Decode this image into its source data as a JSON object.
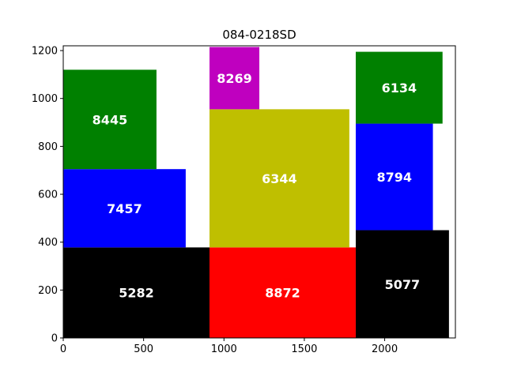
{
  "chart_data": {
    "type": "bar",
    "title": "084-0218SD",
    "xlabel": "",
    "ylabel": "",
    "xlim": [
      0,
      2440
    ],
    "ylim": [
      0,
      1220
    ],
    "xticks": [
      0,
      500,
      1000,
      1500,
      2000
    ],
    "yticks": [
      0,
      200,
      400,
      600,
      800,
      1000,
      1200
    ],
    "grid": false,
    "pieces": [
      {
        "label": "5282",
        "x": [
          0,
          910
        ],
        "y": [
          0,
          378
        ],
        "color": "#000000"
      },
      {
        "label": "7457",
        "x": [
          0,
          762
        ],
        "y": [
          378,
          705
        ],
        "color": "#0000ff"
      },
      {
        "label": "8445",
        "x": [
          0,
          580
        ],
        "y": [
          705,
          1120
        ],
        "color": "#008000"
      },
      {
        "label": "8872",
        "x": [
          910,
          1820
        ],
        "y": [
          0,
          378
        ],
        "color": "#ff0000"
      },
      {
        "label": "6344",
        "x": [
          910,
          1780
        ],
        "y": [
          378,
          955
        ],
        "color": "#bfbf00"
      },
      {
        "label": "8269",
        "x": [
          910,
          1220
        ],
        "y": [
          955,
          1215
        ],
        "color": "#bf00bf"
      },
      {
        "label": "5077",
        "x": [
          1820,
          2400
        ],
        "y": [
          0,
          450
        ],
        "color": "#000000"
      },
      {
        "label": "8794",
        "x": [
          1820,
          2300
        ],
        "y": [
          450,
          895
        ],
        "color": "#0000ff"
      },
      {
        "label": "6134",
        "x": [
          1820,
          2360
        ],
        "y": [
          895,
          1195
        ],
        "color": "#008000"
      }
    ]
  }
}
